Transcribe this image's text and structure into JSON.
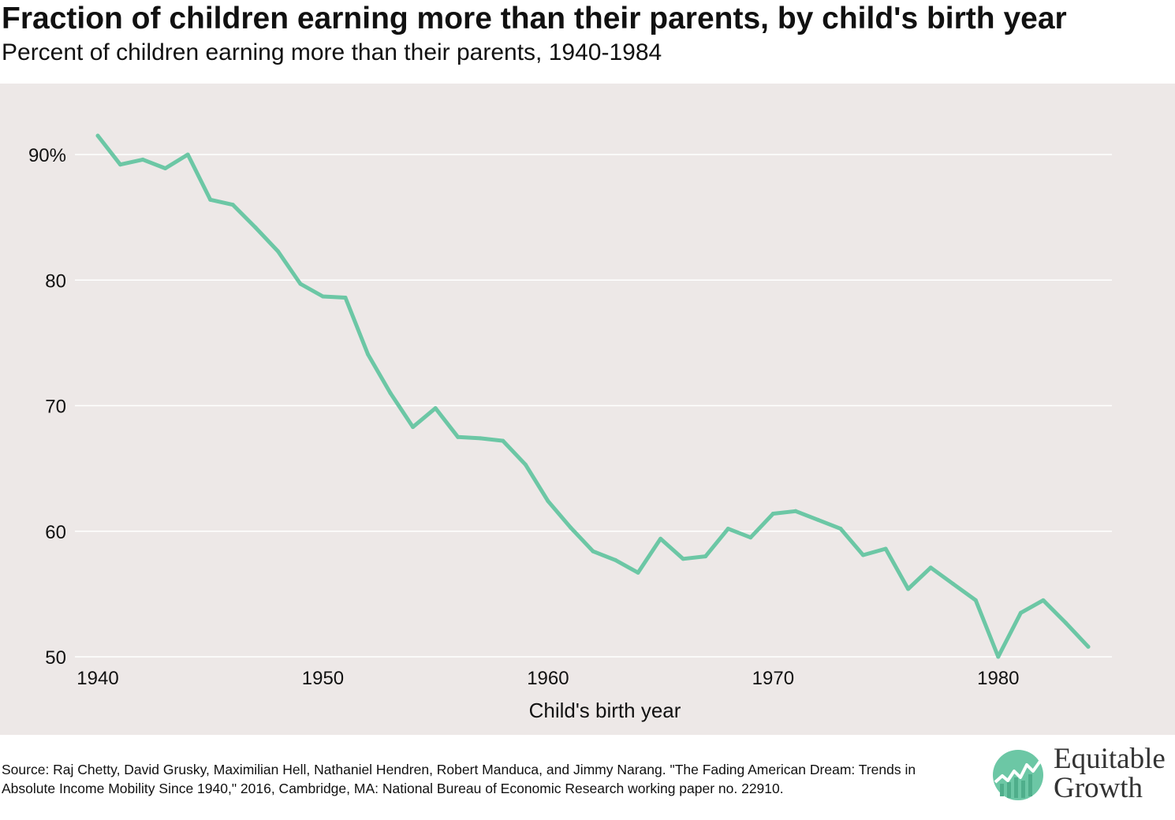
{
  "title": "Fraction of children earning more than their parents, by child's birth year",
  "subtitle": "Percent of children earning more than their parents, 1940-1984",
  "source": "Source: Raj Chetty, David Grusky, Maximilian Hell, Nathaniel Hendren, Robert Manduca, and Jimmy Narang. \"The Fading American Dream: Trends in Absolute Income Mobility Since 1940,\" 2016, Cambridge, MA: National Bureau of Economic Research working paper no. 22910.",
  "logo": {
    "line1": "Equitable",
    "line2": "Growth",
    "icon": "equitable-growth-logo-icon"
  },
  "colors": {
    "line": "#6cc7a5",
    "plot_background": "#ede8e7",
    "gridline": "#ffffff"
  },
  "chart_data": {
    "type": "line",
    "title": "Fraction of children earning more than their parents, by child's birth year",
    "subtitle": "Percent of children earning more than their parents, 1940-1984",
    "xlabel": "Child's birth year",
    "ylabel": "",
    "xlim": [
      1940,
      1984
    ],
    "ylim": [
      50,
      90
    ],
    "x_ticks": [
      1940,
      1950,
      1960,
      1970,
      1980
    ],
    "x_tick_labels": [
      "1940",
      "1950",
      "1960",
      "1970",
      "1980"
    ],
    "y_ticks": [
      50,
      60,
      70,
      80,
      90
    ],
    "y_tick_labels": [
      "50",
      "60",
      "70",
      "80",
      "90%"
    ],
    "grid": "horizontal",
    "x": [
      1940,
      1941,
      1942,
      1943,
      1944,
      1945,
      1946,
      1947,
      1948,
      1949,
      1950,
      1951,
      1952,
      1953,
      1954,
      1955,
      1956,
      1957,
      1958,
      1959,
      1960,
      1961,
      1962,
      1963,
      1964,
      1965,
      1966,
      1967,
      1968,
      1969,
      1970,
      1971,
      1972,
      1973,
      1974,
      1975,
      1976,
      1977,
      1978,
      1979,
      1980,
      1981,
      1982,
      1983,
      1984
    ],
    "values": [
      91.5,
      89.2,
      89.6,
      88.9,
      90.0,
      86.4,
      86.0,
      84.2,
      82.3,
      79.7,
      78.7,
      78.6,
      74.1,
      71.0,
      68.3,
      69.8,
      67.5,
      67.4,
      67.2,
      65.3,
      62.4,
      60.3,
      58.4,
      57.7,
      56.7,
      59.4,
      57.8,
      58.0,
      60.2,
      59.5,
      61.4,
      61.6,
      60.9,
      60.2,
      58.1,
      58.6,
      55.4,
      57.1,
      55.8,
      54.5,
      50.0,
      53.5,
      54.5,
      52.7,
      50.8
    ]
  }
}
